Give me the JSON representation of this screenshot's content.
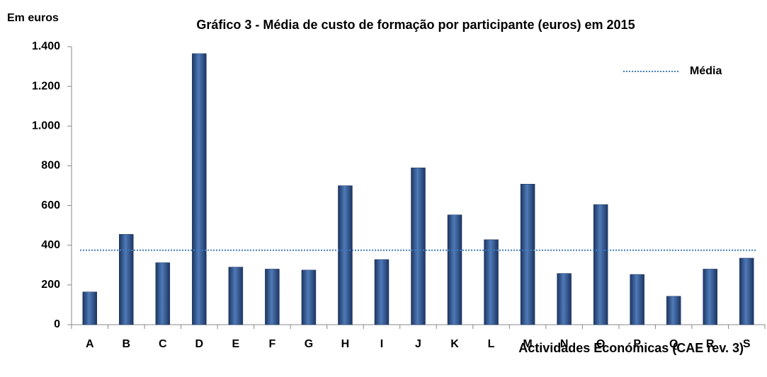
{
  "chart_data": {
    "type": "bar",
    "title": "Gráfico 3 - Média de custo de formação por participante (euros) em 2015",
    "y_label": "Em euros",
    "x_label": "Actividades Económicas (CAE rev. 3)",
    "categories": [
      "A",
      "B",
      "C",
      "D",
      "E",
      "F",
      "G",
      "H",
      "I",
      "J",
      "K",
      "L",
      "M",
      "N",
      "O",
      "P",
      "Q",
      "R",
      "S"
    ],
    "values": [
      165,
      455,
      312,
      1365,
      290,
      280,
      275,
      700,
      328,
      790,
      553,
      428,
      708,
      258,
      605,
      253,
      143,
      280,
      335
    ],
    "color": "#3a64a0",
    "reference_line": {
      "name": "Média",
      "value": 375,
      "color": "#3f7cc0"
    },
    "ylim": [
      0,
      1400
    ],
    "yticks": [
      0,
      200,
      400,
      600,
      800,
      {
        "value": 1000,
        "label": "1.000"
      },
      {
        "value": 1200,
        "label": "1.200"
      },
      {
        "value": 1400,
        "label": "1.400"
      }
    ],
    "legend": "upper right"
  }
}
